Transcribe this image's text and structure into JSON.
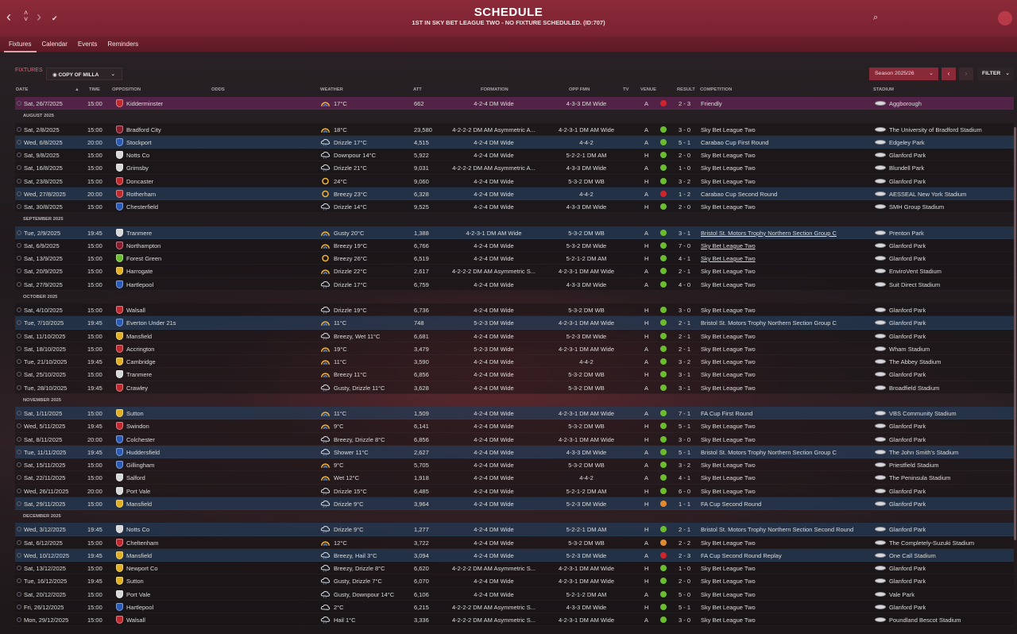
{
  "header": {
    "title": "SCHEDULE",
    "subtitle": "1ST IN SKY BET LEAGUE TWO - NO FIXTURE SCHEDULED. (ID:707)"
  },
  "tabs": [
    "Fixtures",
    "Calendar",
    "Events",
    "Reminders"
  ],
  "toolbar": {
    "section_label": "FIXTURES",
    "view_selector": "COPY OF MILLA",
    "season": "Season 2025/26",
    "filter": "FILTER"
  },
  "columns": {
    "date": "DATE",
    "time": "TIME",
    "opposition": "OPPOSITION",
    "odds": "ODDS",
    "weather": "WEATHER",
    "att": "ATT",
    "formation": "FORMATION",
    "opp_fmn": "OPP FMN",
    "tv": "TV",
    "venue": "VENUE",
    "result": "RESULT",
    "competition": "COMPETITION",
    "stadium": "STADIUM"
  },
  "rows": [
    {
      "type": "fixture",
      "style": "friendly",
      "date": "Sat, 26/7/2025",
      "time": "15:00",
      "opp": "Kidderminster",
      "badge": "#c0282e",
      "weather": "17°C",
      "wicon": "sun",
      "att": "662",
      "form": "4-2-4 DM Wide",
      "oppf": "4-3-3 DM Wide",
      "venue": "A",
      "res_color": "#d0242c",
      "result": "2 - 3",
      "comp": "Friendly",
      "stadium": "Aggborough"
    },
    {
      "type": "month",
      "label": "AUGUST 2025"
    },
    {
      "type": "fixture",
      "date": "Sat, 2/8/2025",
      "time": "15:00",
      "opp": "Bradford City",
      "badge": "#8a1c2c",
      "weather": "18°C",
      "wicon": "sun",
      "att": "23,580",
      "form": "4-2-2-2 DM AM Asymmetric A...",
      "oppf": "4-2-3-1 DM AM Wide",
      "venue": "A",
      "res_color": "#6bbd2e",
      "result": "3 - 0",
      "comp": "Sky Bet League Two",
      "stadium": "The University of Bradford Stadium"
    },
    {
      "type": "fixture",
      "style": "cup",
      "date": "Wed, 6/8/2025",
      "time": "20:00",
      "opp": "Stockport",
      "badge": "#2a5ab8",
      "weather": "Drizzle 17°C",
      "wicon": "rain",
      "att": "4,515",
      "form": "4-2-4 DM Wide",
      "oppf": "4-4-2",
      "venue": "A",
      "res_color": "#6bbd2e",
      "result": "5 - 1",
      "comp": "Carabao Cup First Round",
      "stadium": "Edgeley Park"
    },
    {
      "type": "fixture",
      "date": "Sat, 9/8/2025",
      "time": "15:00",
      "opp": "Notts Co",
      "badge": "#d8d8d8",
      "weather": "Downpour 14°C",
      "wicon": "rain",
      "att": "5,922",
      "form": "4-2-4 DM Wide",
      "oppf": "5-2-2-1 DM AM",
      "venue": "H",
      "res_color": "#6bbd2e",
      "result": "2 - 0",
      "comp": "Sky Bet League Two",
      "stadium": "Glanford Park"
    },
    {
      "type": "fixture",
      "date": "Sat, 16/8/2025",
      "time": "15:00",
      "opp": "Grimsby",
      "badge": "#d8d8d8",
      "weather": "Drizzle 21°C",
      "wicon": "rain",
      "att": "9,031",
      "form": "4-2-2-2 DM AM Asymmetric A...",
      "oppf": "4-3-3 DM Wide",
      "venue": "A",
      "res_color": "#6bbd2e",
      "result": "1 - 0",
      "comp": "Sky Bet League Two",
      "stadium": "Blundell Park"
    },
    {
      "type": "fixture",
      "date": "Sat, 23/8/2025",
      "time": "15:00",
      "opp": "Doncaster",
      "badge": "#c0282e",
      "weather": "24°C",
      "wicon": "sunny",
      "att": "9,060",
      "form": "4-2-4 DM Wide",
      "oppf": "5-3-2 DM WB",
      "venue": "H",
      "res_color": "#6bbd2e",
      "result": "3 - 2",
      "comp": "Sky Bet League Two",
      "stadium": "Glanford Park"
    },
    {
      "type": "fixture",
      "style": "cup",
      "date": "Wed, 27/8/2025",
      "time": "20:00",
      "opp": "Rotherham",
      "badge": "#c0282e",
      "weather": "Breezy 23°C",
      "wicon": "sunny",
      "att": "6,328",
      "form": "4-2-4 DM Wide",
      "oppf": "4-4-2",
      "venue": "A",
      "res_color": "#d0242c",
      "result": "1 - 2",
      "comp": "Carabao Cup Second Round",
      "stadium": "AESSEAL New York Stadium"
    },
    {
      "type": "fixture",
      "date": "Sat, 30/8/2025",
      "time": "15:00",
      "opp": "Chesterfield",
      "badge": "#2a5ab8",
      "weather": "Drizzle 14°C",
      "wicon": "rain",
      "att": "9,525",
      "form": "4-2-4 DM Wide",
      "oppf": "4-3-3 DM Wide",
      "venue": "H",
      "res_color": "#6bbd2e",
      "result": "2 - 0",
      "comp": "Sky Bet League Two",
      "stadium": "SMH Group Stadium"
    },
    {
      "type": "month",
      "label": "SEPTEMBER 2025"
    },
    {
      "type": "fixture",
      "style": "cup",
      "date": "Tue, 2/9/2025",
      "time": "19:45",
      "opp": "Tranmere",
      "badge": "#d8d8d8",
      "weather": "Gusty 20°C",
      "wicon": "sun",
      "att": "1,388",
      "form": "4-2-3-1 DM AM Wide",
      "oppf": "5-3-2 DM WB",
      "venue": "A",
      "res_color": "#6bbd2e",
      "result": "3 - 1",
      "comp": "Bristol St. Motors Trophy Northern Section Group C",
      "comp_ul": true,
      "stadium": "Prenton Park"
    },
    {
      "type": "fixture",
      "date": "Sat, 6/9/2025",
      "time": "15:00",
      "opp": "Northampton",
      "badge": "#8a1c2c",
      "weather": "Breezy 19°C",
      "wicon": "sun",
      "att": "6,766",
      "form": "4-2-4 DM Wide",
      "oppf": "5-3-2 DM Wide",
      "venue": "H",
      "res_color": "#6bbd2e",
      "result": "7 - 0",
      "comp": "Sky Bet League Two",
      "comp_ul": true,
      "stadium": "Glanford Park"
    },
    {
      "type": "fixture",
      "date": "Sat, 13/9/2025",
      "time": "15:00",
      "opp": "Forest Green",
      "badge": "#6bbd2e",
      "weather": "Breezy 26°C",
      "wicon": "sunny",
      "att": "6,519",
      "form": "4-2-4 DM Wide",
      "oppf": "5-2-1-2 DM AM",
      "venue": "H",
      "res_color": "#6bbd2e",
      "result": "4 - 1",
      "comp": "Sky Bet League Two",
      "comp_ul": true,
      "stadium": "Glanford Park"
    },
    {
      "type": "fixture",
      "date": "Sat, 20/9/2025",
      "time": "15:00",
      "opp": "Harrogate",
      "badge": "#e0b020",
      "weather": "Drizzle 22°C",
      "wicon": "sun",
      "att": "2,617",
      "form": "4-2-2-2 DM AM Asymmetric S...",
      "oppf": "4-2-3-1 DM AM Wide",
      "venue": "A",
      "res_color": "#6bbd2e",
      "result": "2 - 1",
      "comp": "Sky Bet League Two",
      "stadium": "EnviroVent Stadium"
    },
    {
      "type": "fixture",
      "date": "Sat, 27/9/2025",
      "time": "15:00",
      "opp": "Hartlepool",
      "badge": "#2a5ab8",
      "weather": "Drizzle 17°C",
      "wicon": "rain",
      "att": "6,759",
      "form": "4-2-4 DM Wide",
      "oppf": "4-3-3 DM Wide",
      "venue": "A",
      "res_color": "#6bbd2e",
      "result": "4 - 0",
      "comp": "Sky Bet League Two",
      "stadium": "Suit Direct Stadium"
    },
    {
      "type": "month",
      "label": "OCTOBER 2025"
    },
    {
      "type": "fixture",
      "date": "Sat, 4/10/2025",
      "time": "15:00",
      "opp": "Walsall",
      "badge": "#c0282e",
      "weather": "Drizzle 19°C",
      "wicon": "rain",
      "att": "6,736",
      "form": "4-2-4 DM Wide",
      "oppf": "5-3-2 DM WB",
      "venue": "H",
      "res_color": "#6bbd2e",
      "result": "3 - 0",
      "comp": "Sky Bet League Two",
      "stadium": "Glanford Park"
    },
    {
      "type": "fixture",
      "style": "cup",
      "date": "Tue, 7/10/2025",
      "time": "19:45",
      "opp": "Everton Under 21s",
      "badge": "#2a5ab8",
      "weather": "11°C",
      "wicon": "sun",
      "att": "748",
      "form": "5-2-3 DM Wide",
      "oppf": "4-2-3-1 DM AM Wide",
      "venue": "H",
      "res_color": "#6bbd2e",
      "result": "2 - 1",
      "comp": "Bristol St. Motors Trophy Northern Section Group C",
      "stadium": "Glanford Park"
    },
    {
      "type": "fixture",
      "date": "Sat, 11/10/2025",
      "time": "15:00",
      "opp": "Mansfield",
      "badge": "#e0b020",
      "weather": "Breezy, Wet 11°C",
      "wicon": "rain",
      "att": "6,681",
      "form": "4-2-4 DM Wide",
      "oppf": "5-2-3 DM Wide",
      "venue": "H",
      "res_color": "#6bbd2e",
      "result": "2 - 1",
      "comp": "Sky Bet League Two",
      "stadium": "Glanford Park"
    },
    {
      "type": "fixture",
      "date": "Sat, 18/10/2025",
      "time": "15:00",
      "opp": "Accrington",
      "badge": "#c0282e",
      "weather": "19°C",
      "wicon": "sun",
      "att": "3,479",
      "form": "5-2-3 DM Wide",
      "oppf": "4-2-3-1 DM AM Wide",
      "venue": "A",
      "res_color": "#6bbd2e",
      "result": "2 - 1",
      "comp": "Sky Bet League Two",
      "stadium": "Wham Stadium"
    },
    {
      "type": "fixture",
      "date": "Tue, 21/10/2025",
      "time": "19:45",
      "opp": "Cambridge",
      "badge": "#e0b020",
      "weather": "11°C",
      "wicon": "sun",
      "att": "3,590",
      "form": "4-2-4 DM Wide",
      "oppf": "4-4-2",
      "venue": "A",
      "res_color": "#6bbd2e",
      "result": "3 - 2",
      "comp": "Sky Bet League Two",
      "stadium": "The Abbey Stadium"
    },
    {
      "type": "fixture",
      "date": "Sat, 25/10/2025",
      "time": "15:00",
      "opp": "Tranmere",
      "badge": "#d8d8d8",
      "weather": "Breezy 11°C",
      "wicon": "sun",
      "att": "6,856",
      "form": "4-2-4 DM Wide",
      "oppf": "5-3-2 DM WB",
      "venue": "H",
      "res_color": "#6bbd2e",
      "result": "3 - 1",
      "comp": "Sky Bet League Two",
      "stadium": "Glanford Park"
    },
    {
      "type": "fixture",
      "date": "Tue, 28/10/2025",
      "time": "19:45",
      "opp": "Crawley",
      "badge": "#c0282e",
      "weather": "Gusty, Drizzle 11°C",
      "wicon": "rain",
      "att": "3,628",
      "form": "4-2-4 DM Wide",
      "oppf": "5-3-2 DM WB",
      "venue": "A",
      "res_color": "#6bbd2e",
      "result": "3 - 1",
      "comp": "Sky Bet League Two",
      "stadium": "Broadfield Stadium"
    },
    {
      "type": "month",
      "label": "NOVEMBER 2025"
    },
    {
      "type": "fixture",
      "style": "cup",
      "date": "Sat, 1/11/2025",
      "time": "15:00",
      "opp": "Sutton",
      "badge": "#e0b020",
      "weather": "11°C",
      "wicon": "sun",
      "att": "1,509",
      "form": "4-2-4 DM Wide",
      "oppf": "4-2-3-1 DM AM Wide",
      "venue": "A",
      "res_color": "#6bbd2e",
      "result": "7 - 1",
      "comp": "FA Cup First Round",
      "stadium": "VBS Community Stadium"
    },
    {
      "type": "fixture",
      "date": "Wed, 5/11/2025",
      "time": "19:45",
      "opp": "Swindon",
      "badge": "#c0282e",
      "weather": "9°C",
      "wicon": "sun",
      "att": "6,141",
      "form": "4-2-4 DM Wide",
      "oppf": "5-3-2 DM WB",
      "venue": "H",
      "res_color": "#6bbd2e",
      "result": "5 - 1",
      "comp": "Sky Bet League Two",
      "stadium": "Glanford Park"
    },
    {
      "type": "fixture",
      "date": "Sat, 8/11/2025",
      "time": "20:00",
      "opp": "Colchester",
      "badge": "#2a5ab8",
      "weather": "Breezy, Drizzle 8°C",
      "wicon": "rain",
      "att": "6,856",
      "form": "4-2-4 DM Wide",
      "oppf": "4-2-3-1 DM AM Wide",
      "venue": "H",
      "res_color": "#6bbd2e",
      "result": "3 - 0",
      "comp": "Sky Bet League Two",
      "stadium": "Glanford Park"
    },
    {
      "type": "fixture",
      "style": "cup",
      "date": "Tue, 11/11/2025",
      "time": "19:45",
      "opp": "Huddersfield",
      "badge": "#2a5ab8",
      "weather": "Shower 11°C",
      "wicon": "rain",
      "att": "2,627",
      "form": "4-2-4 DM Wide",
      "oppf": "4-3-3 DM Wide",
      "venue": "A",
      "res_color": "#6bbd2e",
      "result": "5 - 1",
      "comp": "Bristol St. Motors Trophy Northern Section Group C",
      "stadium": "The John Smith's Stadium"
    },
    {
      "type": "fixture",
      "date": "Sat, 15/11/2025",
      "time": "15:00",
      "opp": "Gillingham",
      "badge": "#2a5ab8",
      "weather": "9°C",
      "wicon": "sun",
      "att": "5,705",
      "form": "4-2-4 DM Wide",
      "oppf": "5-3-2 DM WB",
      "venue": "A",
      "res_color": "#6bbd2e",
      "result": "3 - 2",
      "comp": "Sky Bet League Two",
      "stadium": "Priestfield Stadium"
    },
    {
      "type": "fixture",
      "date": "Sat, 22/11/2025",
      "time": "15:00",
      "opp": "Salford",
      "badge": "#d8d8d8",
      "weather": "Wet 12°C",
      "wicon": "sun",
      "att": "1,918",
      "form": "4-2-4 DM Wide",
      "oppf": "4-4-2",
      "venue": "A",
      "res_color": "#6bbd2e",
      "result": "4 - 1",
      "comp": "Sky Bet League Two",
      "stadium": "The Peninsula Stadium"
    },
    {
      "type": "fixture",
      "date": "Wed, 26/11/2025",
      "time": "20:00",
      "opp": "Port Vale",
      "badge": "#d8d8d8",
      "weather": "Drizzle 15°C",
      "wicon": "rain",
      "att": "6,485",
      "form": "4-2-4 DM Wide",
      "oppf": "5-2-1-2 DM AM",
      "venue": "H",
      "res_color": "#6bbd2e",
      "result": "6 - 0",
      "comp": "Sky Bet League Two",
      "stadium": "Glanford Park"
    },
    {
      "type": "fixture",
      "style": "cup",
      "date": "Sat, 29/11/2025",
      "time": "15:00",
      "opp": "Mansfield",
      "badge": "#e0b020",
      "weather": "Drizzle 9°C",
      "wicon": "rain",
      "att": "3,964",
      "form": "4-2-4 DM Wide",
      "oppf": "5-2-3 DM Wide",
      "venue": "H",
      "res_color": "#e08a30",
      "result": "1 - 1",
      "comp": "FA Cup Second Round",
      "stadium": "Glanford Park"
    },
    {
      "type": "month",
      "label": "DECEMBER 2025"
    },
    {
      "type": "fixture",
      "style": "cup",
      "date": "Wed, 3/12/2025",
      "time": "19:45",
      "opp": "Notts Co",
      "badge": "#d8d8d8",
      "weather": "Drizzle 9°C",
      "wicon": "rain",
      "att": "1,277",
      "form": "4-2-4 DM Wide",
      "oppf": "5-2-2-1 DM AM",
      "venue": "H",
      "res_color": "#6bbd2e",
      "result": "2 - 1",
      "comp": "Bristol St. Motors Trophy Northern Section Second Round",
      "stadium": "Glanford Park"
    },
    {
      "type": "fixture",
      "date": "Sat, 6/12/2025",
      "time": "15:00",
      "opp": "Cheltenham",
      "badge": "#c0282e",
      "weather": "12°C",
      "wicon": "sun",
      "att": "3,722",
      "form": "4-2-4 DM Wide",
      "oppf": "5-3-2 DM WB",
      "venue": "A",
      "res_color": "#e08a30",
      "result": "2 - 2",
      "comp": "Sky Bet League Two",
      "stadium": "The Completely-Suzuki Stadium"
    },
    {
      "type": "fixture",
      "style": "cup",
      "date": "Wed, 10/12/2025",
      "time": "19:45",
      "opp": "Mansfield",
      "badge": "#e0b020",
      "weather": "Breezy, Hail 3°C",
      "wicon": "rain",
      "att": "3,094",
      "form": "4-2-4 DM Wide",
      "oppf": "5-2-3 DM Wide",
      "venue": "A",
      "res_color": "#d0242c",
      "result": "2 - 3",
      "comp": "FA Cup Second Round Replay",
      "stadium": "One Call Stadium"
    },
    {
      "type": "fixture",
      "date": "Sat, 13/12/2025",
      "time": "15:00",
      "opp": "Newport Co",
      "badge": "#e0b020",
      "weather": "Breezy, Drizzle 8°C",
      "wicon": "rain",
      "att": "6,620",
      "form": "4-2-2-2 DM AM Asymmetric S...",
      "oppf": "4-2-3-1 DM AM Wide",
      "venue": "H",
      "res_color": "#6bbd2e",
      "result": "1 - 0",
      "comp": "Sky Bet League Two",
      "stadium": "Glanford Park"
    },
    {
      "type": "fixture",
      "date": "Tue, 16/12/2025",
      "time": "19:45",
      "opp": "Sutton",
      "badge": "#e0b020",
      "weather": "Gusty, Drizzle 7°C",
      "wicon": "rain",
      "att": "6,070",
      "form": "4-2-4 DM Wide",
      "oppf": "4-2-3-1 DM AM Wide",
      "venue": "H",
      "res_color": "#6bbd2e",
      "result": "2 - 0",
      "comp": "Sky Bet League Two",
      "stadium": "Glanford Park"
    },
    {
      "type": "fixture",
      "date": "Sat, 20/12/2025",
      "time": "15:00",
      "opp": "Port Vale",
      "badge": "#d8d8d8",
      "weather": "Gusty, Downpour 14°C",
      "wicon": "rain",
      "att": "6,106",
      "form": "4-2-4 DM Wide",
      "oppf": "5-2-1-2 DM AM",
      "venue": "A",
      "res_color": "#6bbd2e",
      "result": "5 - 0",
      "comp": "Sky Bet League Two",
      "stadium": "Vale Park"
    },
    {
      "type": "fixture",
      "date": "Fri, 26/12/2025",
      "time": "15:00",
      "opp": "Hartlepool",
      "badge": "#2a5ab8",
      "weather": "2°C",
      "wicon": "cloud",
      "att": "6,215",
      "form": "4-2-2-2 DM AM Asymmetric S...",
      "oppf": "4-3-3 DM Wide",
      "venue": "H",
      "res_color": "#6bbd2e",
      "result": "5 - 1",
      "comp": "Sky Bet League Two",
      "stadium": "Glanford Park"
    },
    {
      "type": "fixture",
      "date": "Mon, 29/12/2025",
      "time": "15:00",
      "opp": "Walsall",
      "badge": "#c0282e",
      "weather": "Hail 1°C",
      "wicon": "rain",
      "att": "3,336",
      "form": "4-2-2-2 DM AM Asymmetric S...",
      "oppf": "4-2-3-1 DM AM Wide",
      "venue": "A",
      "res_color": "#6bbd2e",
      "result": "3 - 0",
      "comp": "Sky Bet League Two",
      "stadium": "Poundland Bescot Stadium"
    }
  ]
}
